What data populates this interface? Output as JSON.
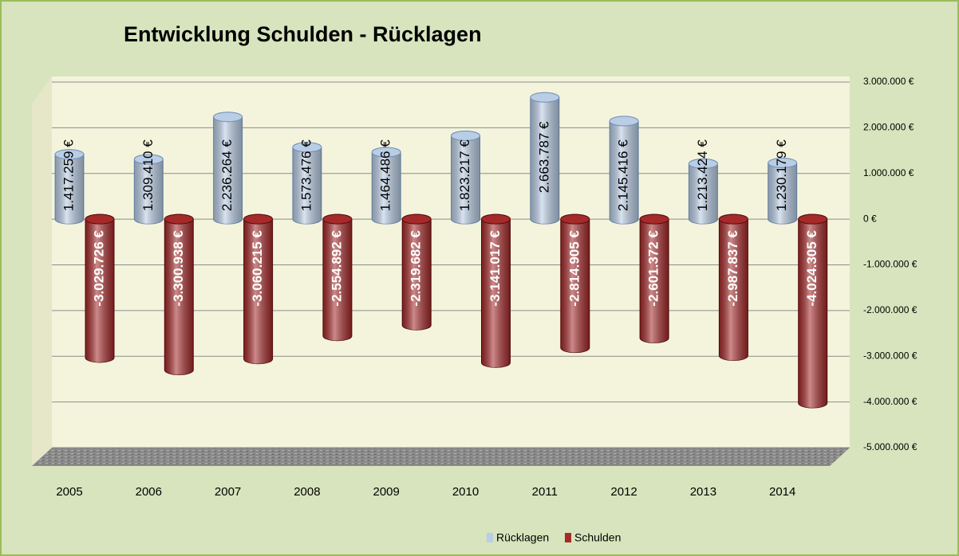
{
  "chart_data": {
    "type": "bar",
    "title": "Entwicklung Schulden - Rücklagen",
    "categories": [
      "2005",
      "2006",
      "2007",
      "2008",
      "2009",
      "2010",
      "2011",
      "2012",
      "2013",
      "2014"
    ],
    "series": [
      {
        "name": "Rücklagen",
        "color": "#b9cde5",
        "values": [
          1417259,
          1309410,
          2236264,
          1573476,
          1464486,
          1823217,
          2663787,
          2145416,
          1213424,
          1230179
        ],
        "value_labels": [
          "1.417.259 €",
          "1.309.410 €",
          "2.236.264 €",
          "1.573.476 €",
          "1.464.486 €",
          "1.823.217 €",
          "2.663.787 €",
          "2.145.416 €",
          "1.213.424 €",
          "1.230.179 €"
        ]
      },
      {
        "name": "Schulden",
        "color": "#a52a2a",
        "values": [
          -3029726,
          -3300938,
          -3060215,
          -2554892,
          -2319682,
          -3141017,
          -2814905,
          -2601372,
          -2987837,
          -4024305
        ],
        "value_labels": [
          "-3.029.726 €",
          "-3.300.938 €",
          "-3.060.215 €",
          "-2.554.892 €",
          "-2.319.682 €",
          "-3.141.017 €",
          "-2.814.905 €",
          "-2.601.372 €",
          "-2.987.837 €",
          "-4.024.305 €"
        ]
      }
    ],
    "ylim": [
      -5000000,
      3000000
    ],
    "yticks": [
      {
        "value": 3000000,
        "label": "3.000.000 €"
      },
      {
        "value": 2000000,
        "label": "2.000.000 €"
      },
      {
        "value": 1000000,
        "label": "1.000.000 €"
      },
      {
        "value": 0,
        "label": "0 €"
      },
      {
        "value": -1000000,
        "label": "-1.000.000 €"
      },
      {
        "value": -2000000,
        "label": "-2.000.000 €"
      },
      {
        "value": -3000000,
        "label": "-3.000.000 €"
      },
      {
        "value": -4000000,
        "label": "-4.000.000 €"
      },
      {
        "value": -5000000,
        "label": "-5.000.000 €"
      }
    ],
    "grid": true,
    "legend": "bottom"
  }
}
